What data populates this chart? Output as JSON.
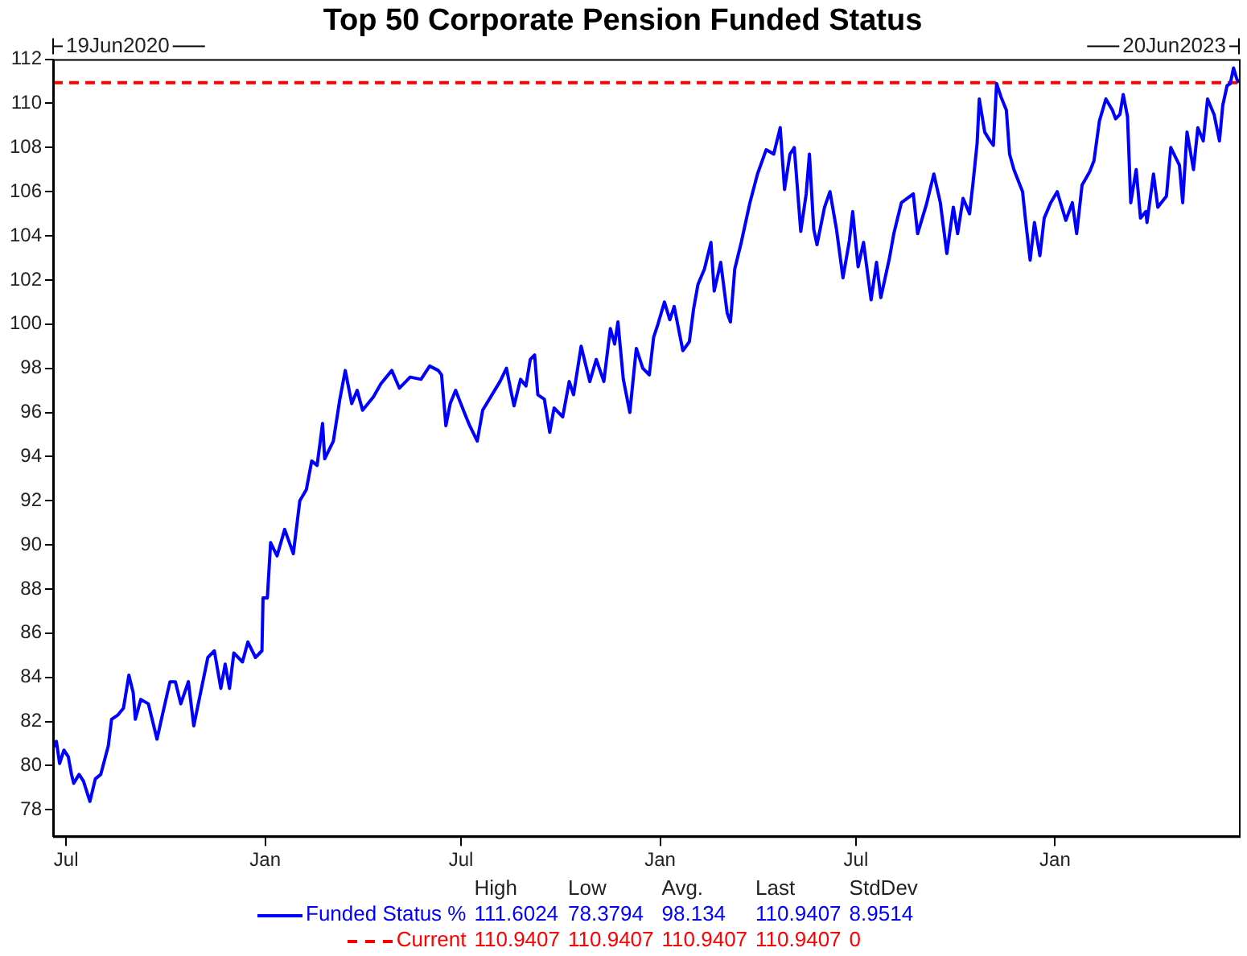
{
  "chart_data": {
    "type": "line",
    "title": "Top 50 Corporate Pension Funded Status",
    "x": [
      "2020-06-19",
      "2020-06-22",
      "2020-06-25",
      "2020-06-29",
      "2020-07-03",
      "2020-07-06",
      "2020-07-08",
      "2020-07-13",
      "2020-07-17",
      "2020-07-23",
      "2020-07-28",
      "2020-08-02",
      "2020-08-09",
      "2020-08-12",
      "2020-08-18",
      "2020-08-23",
      "2020-08-28",
      "2020-09-01",
      "2020-09-03",
      "2020-09-08",
      "2020-09-15",
      "2020-09-23",
      "2020-09-28",
      "2020-10-05",
      "2020-10-10",
      "2020-10-15",
      "2020-10-22",
      "2020-10-27",
      "2020-11-01",
      "2020-11-09",
      "2020-11-15",
      "2020-11-21",
      "2020-11-25",
      "2020-11-29",
      "2020-12-03",
      "2020-12-11",
      "2020-12-16",
      "2020-12-23",
      "2020-12-29",
      "2020-12-30",
      "2021-01-03",
      "2021-01-06",
      "2021-01-12",
      "2021-01-19",
      "2021-01-27",
      "2021-02-02",
      "2021-02-08",
      "2021-02-13",
      "2021-02-18",
      "2021-02-23",
      "2021-02-25",
      "2021-03-05",
      "2021-03-11",
      "2021-03-16",
      "2021-03-22",
      "2021-03-27",
      "2021-04-01",
      "2021-04-11",
      "2021-04-18",
      "2021-04-28",
      "2021-05-05",
      "2021-05-15",
      "2021-05-25",
      "2021-06-02",
      "2021-06-10",
      "2021-06-13",
      "2021-06-17",
      "2021-06-21",
      "2021-06-26",
      "2021-07-04",
      "2021-07-09",
      "2021-07-16",
      "2021-07-21",
      "2021-08-06",
      "2021-08-12",
      "2021-08-16",
      "2021-08-19",
      "2021-08-25",
      "2021-08-30",
      "2021-09-03",
      "2021-09-07",
      "2021-09-10",
      "2021-09-16",
      "2021-09-21",
      "2021-09-25",
      "2021-10-03",
      "2021-10-09",
      "2021-10-13",
      "2021-10-20",
      "2021-10-28",
      "2021-11-03",
      "2021-11-10",
      "2021-11-16",
      "2021-11-20",
      "2021-11-23",
      "2021-11-28",
      "2021-12-04",
      "2021-12-10",
      "2021-12-16",
      "2021-12-22",
      "2021-12-26",
      "2021-12-30",
      "2022-01-05",
      "2022-01-10",
      "2022-01-14",
      "2022-01-22",
      "2022-01-28",
      "2022-02-01",
      "2022-02-05",
      "2022-02-11",
      "2022-02-17",
      "2022-02-20",
      "2022-02-26",
      "2022-03-04",
      "2022-03-07",
      "2022-03-11",
      "2022-03-17",
      "2022-03-25",
      "2022-04-01",
      "2022-04-09",
      "2022-04-16",
      "2022-04-22",
      "2022-04-26",
      "2022-05-01",
      "2022-05-05",
      "2022-05-11",
      "2022-05-16",
      "2022-05-19",
      "2022-05-23",
      "2022-05-26",
      "2022-06-02",
      "2022-06-07",
      "2022-06-13",
      "2022-06-19",
      "2022-06-25",
      "2022-06-28",
      "2022-07-03",
      "2022-07-08",
      "2022-07-15",
      "2022-07-20",
      "2022-07-24",
      "2022-08-01",
      "2022-08-05",
      "2022-08-12",
      "2022-08-23",
      "2022-08-27",
      "2022-09-04",
      "2022-09-11",
      "2022-09-17",
      "2022-09-23",
      "2022-09-29",
      "2022-10-03",
      "2022-10-08",
      "2022-10-14",
      "2022-10-17",
      "2022-10-21",
      "2022-10-23",
      "2022-10-28",
      "2022-11-02",
      "2022-11-05",
      "2022-11-08",
      "2022-11-12",
      "2022-11-17",
      "2022-11-20",
      "2022-11-24",
      "2022-12-02",
      "2022-12-05",
      "2022-12-09",
      "2022-12-13",
      "2022-12-18",
      "2022-12-22",
      "2022-12-28",
      "2023-01-03",
      "2023-01-11",
      "2023-01-17",
      "2023-01-21",
      "2023-01-26",
      "2023-02-02",
      "2023-02-06",
      "2023-02-11",
      "2023-02-17",
      "2023-02-23",
      "2023-02-26",
      "2023-03-02",
      "2023-03-05",
      "2023-03-09",
      "2023-03-12",
      "2023-03-17",
      "2023-03-21",
      "2023-03-26",
      "2023-03-27",
      "2023-04-02",
      "2023-04-06",
      "2023-04-14",
      "2023-04-18",
      "2023-04-26",
      "2023-04-29",
      "2023-05-03",
      "2023-05-09",
      "2023-05-13",
      "2023-05-18",
      "2023-05-22",
      "2023-05-28",
      "2023-06-02",
      "2023-06-05",
      "2023-06-09",
      "2023-06-12",
      "2023-06-15",
      "2023-06-18",
      "2023-06-20"
    ],
    "series": [
      {
        "name": "Funded Status %",
        "color": "#0000ff",
        "values": [
          80.8,
          81.1,
          80.1,
          80.7,
          80.4,
          79.6,
          79.2,
          79.6,
          79.3,
          78.3794,
          79.4,
          79.6,
          80.9,
          82.1,
          82.3,
          82.6,
          84.1,
          83.3,
          82.1,
          83.0,
          82.8,
          81.2,
          82.3,
          83.8,
          83.8,
          82.8,
          83.8,
          81.8,
          83.0,
          84.9,
          85.2,
          83.5,
          84.6,
          83.5,
          85.1,
          84.7,
          85.6,
          84.9,
          85.2,
          87.6,
          87.6,
          90.1,
          89.5,
          90.7,
          89.6,
          92.0,
          92.5,
          93.8,
          93.6,
          95.5,
          93.9,
          94.7,
          96.6,
          97.9,
          96.4,
          97.0,
          96.1,
          96.7,
          97.3,
          97.9,
          97.1,
          97.6,
          97.5,
          98.1,
          97.9,
          97.7,
          95.4,
          96.4,
          97.0,
          96.0,
          95.4,
          94.7,
          96.1,
          97.4,
          98.0,
          97.0,
          96.3,
          97.5,
          97.2,
          98.4,
          98.6,
          96.8,
          96.6,
          95.1,
          96.2,
          95.8,
          97.4,
          96.8,
          99.0,
          97.4,
          98.4,
          97.4,
          99.8,
          99.1,
          100.1,
          97.5,
          96.0,
          98.9,
          98.0,
          97.7,
          99.4,
          100.0,
          101.0,
          100.2,
          100.8,
          98.8,
          99.2,
          100.7,
          101.8,
          102.5,
          103.7,
          101.5,
          102.8,
          100.5,
          100.1,
          102.5,
          103.7,
          105.5,
          106.8,
          107.9,
          107.7,
          108.9,
          106.1,
          107.7,
          108.0,
          104.2,
          105.9,
          107.7,
          104.3,
          103.6,
          105.3,
          106.0,
          104.3,
          102.1,
          103.8,
          105.1,
          102.6,
          103.7,
          101.1,
          102.8,
          101.2,
          103.0,
          104.1,
          105.5,
          105.9,
          104.1,
          105.4,
          106.8,
          105.5,
          103.2,
          105.3,
          104.1,
          105.7,
          105.0,
          106.3,
          108.2,
          110.2,
          108.7,
          108.3,
          108.1,
          110.9,
          110.3,
          109.7,
          107.7,
          107.0,
          106.0,
          104.6,
          102.9,
          104.6,
          103.1,
          104.8,
          105.5,
          106.0,
          104.7,
          105.5,
          104.1,
          106.3,
          106.9,
          107.4,
          109.2,
          110.2,
          109.7,
          109.3,
          109.5,
          110.4,
          109.4,
          105.5,
          107.0,
          104.8,
          105.1,
          104.6,
          106.8,
          105.3,
          105.8,
          108.0,
          107.2,
          105.5,
          108.7,
          107.0,
          108.9,
          108.3,
          110.2,
          109.5,
          108.3,
          109.9,
          110.8,
          110.9,
          111.6024,
          111.1,
          110.9407
        ]
      },
      {
        "name": "Current",
        "color": "#ff0000",
        "line_style": "dashed",
        "x": [
          "2020-06-19",
          "2023-06-20"
        ],
        "values": [
          110.9407,
          110.9407
        ]
      }
    ],
    "xlim": [
      "2020-06-19",
      "2023-06-20"
    ],
    "xticks": [
      {
        "value": "2020-07-01",
        "label": "Jul"
      },
      {
        "value": "2021-01-01",
        "label": "Jan"
      },
      {
        "value": "2021-07-01",
        "label": "Jul"
      },
      {
        "value": "2022-01-01",
        "label": "Jan"
      },
      {
        "value": "2022-07-01",
        "label": "Jul"
      },
      {
        "value": "2023-01-01",
        "label": "Jan"
      }
    ],
    "ylim": [
      76.8,
      112
    ],
    "yticks": [
      78,
      80,
      82,
      84,
      86,
      88,
      90,
      92,
      94,
      96,
      98,
      100,
      102,
      104,
      106,
      108,
      110,
      112
    ],
    "grid": false,
    "legend": "bottom",
    "annotations": [
      "19Jun2020",
      "20Jun2023",
      "High",
      "Low",
      "Avg.",
      "Last",
      "StdDev",
      "111.6024",
      "78.3794",
      "98.134",
      "110.9407",
      "8.9514",
      "110.9407",
      "110.9407",
      "110.9407",
      "110.9407",
      "0"
    ]
  }
}
